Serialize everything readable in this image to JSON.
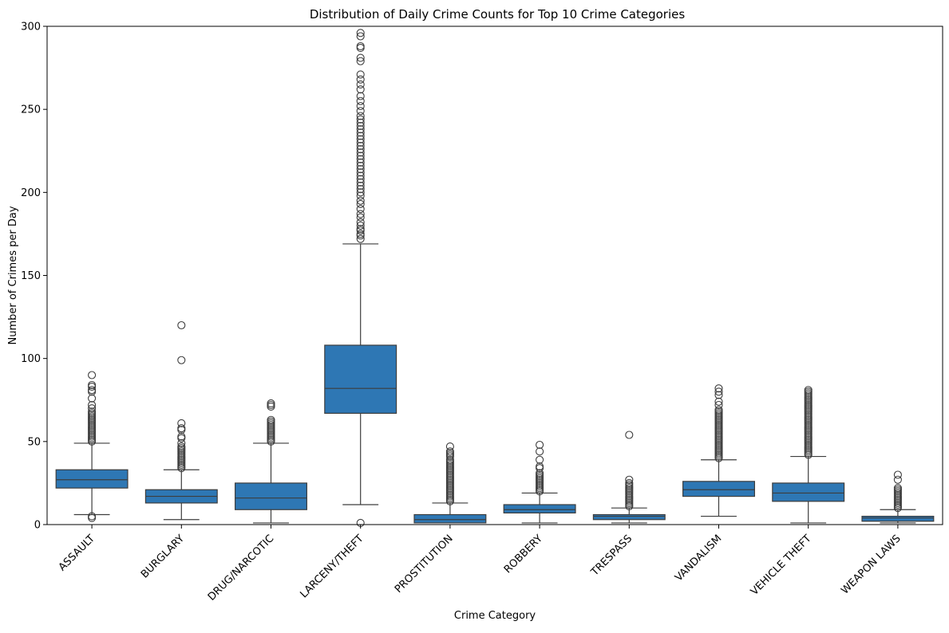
{
  "chart_data": {
    "type": "box",
    "title": "Distribution of Daily Crime Counts for Top 10 Crime Categories",
    "xlabel": "Crime Category",
    "ylabel": "Number of Crimes per Day",
    "ylim": [
      0,
      300
    ],
    "yticks": [
      0,
      50,
      100,
      150,
      200,
      250,
      300
    ],
    "grid": false,
    "legend": "none",
    "box_color": "#2e77b4",
    "line_color": "#3d3d3d",
    "categories": [
      "ASSAULT",
      "BURGLARY",
      "DRUG/NARCOTIC",
      "LARCENY/THEFT",
      "PROSTITUTION",
      "ROBBERY",
      "TRESPASS",
      "VANDALISM",
      "VEHICLE THEFT",
      "WEAPON LAWS"
    ],
    "boxes": [
      {
        "category": "ASSAULT",
        "whisker_low": 6,
        "q1": 22,
        "median": 27,
        "q3": 33,
        "whisker_high": 49,
        "outliers": [
          4,
          5,
          50,
          51,
          52,
          53,
          54,
          55,
          56,
          57,
          58,
          59,
          60,
          61,
          62,
          63,
          64,
          65,
          66,
          67,
          68,
          70,
          72,
          76,
          80,
          81,
          83,
          84,
          90
        ]
      },
      {
        "category": "BURGLARY",
        "whisker_low": 3,
        "q1": 13,
        "median": 17,
        "q3": 21,
        "whisker_high": 33,
        "outliers": [
          34,
          35,
          36,
          37,
          38,
          39,
          40,
          41,
          42,
          43,
          44,
          45,
          46,
          47,
          49,
          52,
          53,
          57,
          58,
          61,
          99,
          120
        ]
      },
      {
        "category": "DRUG/NARCOTIC",
        "whisker_low": 1,
        "q1": 9,
        "median": 16,
        "q3": 25,
        "whisker_high": 49,
        "outliers": [
          50,
          51,
          52,
          53,
          54,
          55,
          56,
          57,
          58,
          59,
          60,
          61,
          62,
          63,
          71,
          72,
          73
        ]
      },
      {
        "category": "LARCENY/THEFT",
        "whisker_low": 12,
        "q1": 67,
        "median": 82,
        "q3": 108,
        "whisker_high": 169,
        "outliers": [
          1,
          172,
          174,
          175,
          177,
          178,
          180,
          182,
          185,
          187,
          190,
          193,
          195,
          198,
          200,
          202,
          204,
          206,
          208,
          210,
          212,
          214,
          216,
          218,
          220,
          222,
          224,
          226,
          228,
          230,
          232,
          234,
          236,
          238,
          240,
          242,
          244,
          246,
          249,
          252,
          255,
          258,
          262,
          265,
          268,
          271,
          279,
          281,
          287,
          288,
          294,
          296
        ]
      },
      {
        "category": "PROSTITUTION",
        "whisker_low": 1,
        "q1": 1,
        "median": 3,
        "q3": 6,
        "whisker_high": 13,
        "outliers": [
          14,
          15,
          16,
          17,
          18,
          19,
          20,
          21,
          22,
          23,
          24,
          25,
          26,
          27,
          28,
          29,
          30,
          31,
          32,
          33,
          34,
          35,
          36,
          37,
          38,
          39,
          41,
          42,
          43,
          44,
          47
        ]
      },
      {
        "category": "ROBBERY",
        "whisker_low": 1,
        "q1": 7,
        "median": 9,
        "q3": 12,
        "whisker_high": 19,
        "outliers": [
          20,
          21,
          22,
          23,
          24,
          25,
          26,
          27,
          28,
          29,
          30,
          31,
          34,
          35,
          39,
          44,
          48
        ]
      },
      {
        "category": "TRESPASS",
        "whisker_low": 1,
        "q1": 3,
        "median": 5,
        "q3": 6,
        "whisker_high": 10,
        "outliers": [
          11,
          12,
          13,
          14,
          15,
          16,
          17,
          18,
          19,
          20,
          21,
          22,
          23,
          24,
          25,
          27,
          54
        ]
      },
      {
        "category": "VANDALISM",
        "whisker_low": 5,
        "q1": 17,
        "median": 21,
        "q3": 26,
        "whisker_high": 39,
        "outliers": [
          40,
          41,
          42,
          43,
          44,
          45,
          46,
          47,
          48,
          49,
          50,
          51,
          52,
          53,
          54,
          55,
          56,
          57,
          58,
          59,
          60,
          61,
          62,
          63,
          64,
          65,
          66,
          67,
          68,
          69,
          72,
          74,
          78,
          80,
          82
        ]
      },
      {
        "category": "VEHICLE THEFT",
        "whisker_low": 1,
        "q1": 14,
        "median": 19,
        "q3": 25,
        "whisker_high": 41,
        "outliers": [
          42,
          43,
          44,
          45,
          46,
          47,
          48,
          49,
          50,
          51,
          52,
          53,
          54,
          55,
          56,
          57,
          58,
          59,
          60,
          61,
          62,
          63,
          64,
          65,
          66,
          67,
          68,
          69,
          70,
          71,
          72,
          73,
          74,
          75,
          76,
          77,
          78,
          79,
          80,
          81
        ]
      },
      {
        "category": "WEAPON LAWS",
        "whisker_low": 1,
        "q1": 2,
        "median": 4,
        "q3": 5,
        "whisker_high": 9,
        "outliers": [
          10,
          11,
          12,
          13,
          14,
          15,
          16,
          17,
          18,
          19,
          20,
          21,
          22,
          27,
          30
        ]
      }
    ]
  }
}
